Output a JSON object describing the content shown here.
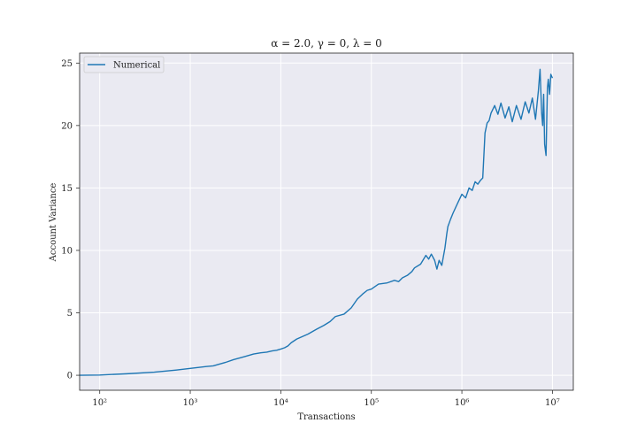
{
  "chart_data": {
    "type": "line",
    "title": "α = 2.0, γ = 0, λ = 0",
    "xlabel": "Transactions",
    "ylabel": "Account Variance",
    "xscale": "log",
    "xlim": [
      60,
      17000000
    ],
    "ylim": [
      -1.2,
      25.8
    ],
    "grid": true,
    "legend_placement": "top-left",
    "x_ticks": [
      {
        "value": 100,
        "label": "10²"
      },
      {
        "value": 1000,
        "label": "10³"
      },
      {
        "value": 10000,
        "label": "10⁴"
      },
      {
        "value": 100000,
        "label": "10⁵"
      },
      {
        "value": 1000000,
        "label": "10⁶"
      },
      {
        "value": 10000000,
        "label": "10⁷"
      }
    ],
    "y_ticks": [
      0,
      5,
      10,
      15,
      20,
      25
    ],
    "colors": {
      "series": "#1f77b4",
      "background": "#eaeaf2",
      "grid": "#ffffff"
    },
    "series": [
      {
        "name": "Numerical",
        "x": [
          60,
          100,
          200,
          400,
          700,
          1000,
          1300,
          1500,
          1800,
          2000,
          2500,
          3000,
          3500,
          4000,
          5000,
          6000,
          7000,
          8000,
          9000,
          10000,
          11000,
          12000,
          13000,
          15000,
          20000,
          25000,
          30000,
          35000,
          40000,
          50000,
          60000,
          70000,
          80000,
          90000,
          100000,
          120000,
          150000,
          180000,
          200000,
          220000,
          250000,
          280000,
          300000,
          350000,
          400000,
          430000,
          460000,
          500000,
          530000,
          560000,
          600000,
          650000,
          680000,
          700000,
          750000,
          800000,
          900000,
          1000000,
          1100000,
          1200000,
          1300000,
          1400000,
          1500000,
          1600000,
          1700000,
          1800000,
          1900000,
          2000000,
          2100000,
          2300000,
          2500000,
          2700000,
          3000000,
          3300000,
          3600000,
          4000000,
          4500000,
          5000000,
          5500000,
          6000000,
          6500000,
          7000000,
          7300000,
          7600000,
          7800000,
          8000000,
          8200000,
          8500000,
          8800000,
          9000000,
          9300000,
          9600000,
          10000000
        ],
        "y": [
          0.0,
          0.02,
          0.12,
          0.25,
          0.42,
          0.55,
          0.65,
          0.7,
          0.75,
          0.85,
          1.05,
          1.25,
          1.38,
          1.5,
          1.7,
          1.8,
          1.85,
          1.95,
          2.0,
          2.1,
          2.2,
          2.35,
          2.6,
          2.9,
          3.3,
          3.7,
          4.0,
          4.3,
          4.7,
          4.9,
          5.4,
          6.1,
          6.5,
          6.8,
          6.9,
          7.3,
          7.4,
          7.6,
          7.5,
          7.8,
          8.0,
          8.3,
          8.6,
          8.9,
          9.6,
          9.3,
          9.7,
          9.2,
          8.5,
          9.2,
          8.8,
          10.2,
          11.3,
          11.9,
          12.5,
          13.0,
          13.8,
          14.5,
          14.2,
          15.0,
          14.8,
          15.5,
          15.3,
          15.6,
          15.8,
          19.4,
          20.2,
          20.4,
          21.0,
          21.6,
          20.9,
          21.8,
          20.6,
          21.5,
          20.3,
          21.6,
          20.5,
          21.9,
          21.0,
          22.2,
          20.5,
          22.8,
          24.5,
          21.0,
          20.0,
          22.5,
          18.5,
          17.6,
          23.0,
          23.7,
          22.5,
          24.1,
          23.8
        ]
      }
    ]
  }
}
